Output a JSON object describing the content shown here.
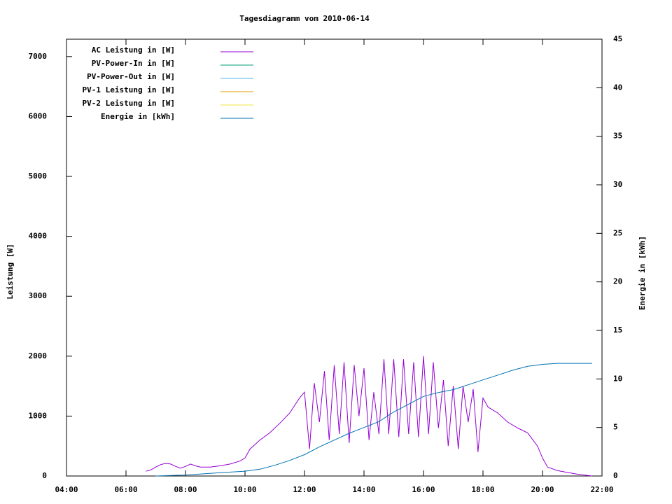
{
  "chart_data": {
    "type": "line",
    "title": "Tagesdiagramm vom 2010-06-14",
    "ylabel": "Leistung [W]",
    "y2label": "Energie in [kWh]",
    "xlim": [
      4,
      22
    ],
    "xticks": [
      {
        "value": 4,
        "label": "04:00"
      },
      {
        "value": 6,
        "label": "06:00"
      },
      {
        "value": 8,
        "label": "08:00"
      },
      {
        "value": 10,
        "label": "10:00"
      },
      {
        "value": 12,
        "label": "12:00"
      },
      {
        "value": 14,
        "label": "14:00"
      },
      {
        "value": 16,
        "label": "16:00"
      },
      {
        "value": 18,
        "label": "18:00"
      },
      {
        "value": 20,
        "label": "20:00"
      },
      {
        "value": 22,
        "label": "22:00"
      }
    ],
    "ylim": [
      0,
      7290
    ],
    "yticks": [
      0,
      1000,
      2000,
      3000,
      4000,
      5000,
      6000,
      7000
    ],
    "y2lim": [
      0,
      45
    ],
    "y2ticks": [
      0,
      5,
      10,
      15,
      20,
      25,
      30,
      35,
      40,
      45
    ],
    "legend": "top-left",
    "series": [
      {
        "name": "AC Leistung in [W]",
        "color": "#9400d3",
        "x": [
          6.67,
          6.83,
          7.0,
          7.17,
          7.33,
          7.5,
          7.67,
          7.83,
          8.0,
          8.17,
          8.33,
          8.5,
          8.83,
          9.17,
          9.5,
          9.83,
          10.0,
          10.17,
          10.5,
          10.83,
          11.17,
          11.5,
          11.83,
          12.0,
          12.17,
          12.33,
          12.5,
          12.67,
          12.83,
          13.0,
          13.17,
          13.33,
          13.5,
          13.67,
          13.83,
          14.0,
          14.17,
          14.33,
          14.5,
          14.67,
          14.83,
          15.0,
          15.17,
          15.33,
          15.5,
          15.67,
          15.83,
          16.0,
          16.17,
          16.33,
          16.5,
          16.67,
          16.83,
          17.0,
          17.17,
          17.33,
          17.5,
          17.67,
          17.83,
          18.0,
          18.17,
          18.5,
          18.83,
          19.17,
          19.5,
          19.83,
          20.0,
          20.17,
          20.5,
          20.83,
          21.17,
          21.5,
          21.67
        ],
        "values": [
          80,
          100,
          150,
          190,
          210,
          200,
          160,
          130,
          160,
          200,
          170,
          150,
          150,
          170,
          200,
          250,
          300,
          450,
          600,
          720,
          880,
          1050,
          1300,
          1400,
          450,
          1550,
          900,
          1750,
          600,
          1850,
          700,
          1900,
          550,
          1850,
          1000,
          1800,
          600,
          1400,
          700,
          1950,
          700,
          1950,
          650,
          1950,
          700,
          1900,
          650,
          2000,
          700,
          1900,
          800,
          1600,
          500,
          1500,
          450,
          1500,
          900,
          1450,
          400,
          1300,
          1150,
          1050,
          900,
          800,
          720,
          500,
          300,
          150,
          90,
          60,
          30,
          10,
          0
        ]
      },
      {
        "name": "PV-Power-In in [W]",
        "color": "#009e73",
        "x": [],
        "values": []
      },
      {
        "name": "PV-Power-Out in [W]",
        "color": "#56b4e9",
        "x": [],
        "values": []
      },
      {
        "name": "PV-1 Leistung in [W]",
        "color": "#e69f00",
        "x": [],
        "values": []
      },
      {
        "name": "PV-2 Leistung in [W]",
        "color": "#f0e442",
        "x": [],
        "values": []
      },
      {
        "name": "Energie in [kWh]",
        "color": "#0072b2",
        "axis": "y2",
        "x": [
          7.0,
          8.0,
          9.0,
          10.0,
          10.5,
          11.0,
          11.5,
          12.0,
          12.5,
          13.0,
          13.5,
          14.0,
          14.5,
          15.0,
          15.5,
          16.0,
          16.5,
          17.0,
          17.5,
          18.0,
          18.5,
          19.0,
          19.5,
          20.0,
          20.5,
          21.0,
          21.67
        ],
        "values": [
          0,
          0.1,
          0.3,
          0.5,
          0.7,
          1.1,
          1.6,
          2.2,
          3.0,
          3.7,
          4.4,
          5.0,
          5.6,
          6.6,
          7.4,
          8.2,
          8.6,
          8.9,
          9.4,
          9.9,
          10.4,
          10.9,
          11.3,
          11.5,
          11.6,
          11.6,
          11.6
        ]
      }
    ]
  }
}
